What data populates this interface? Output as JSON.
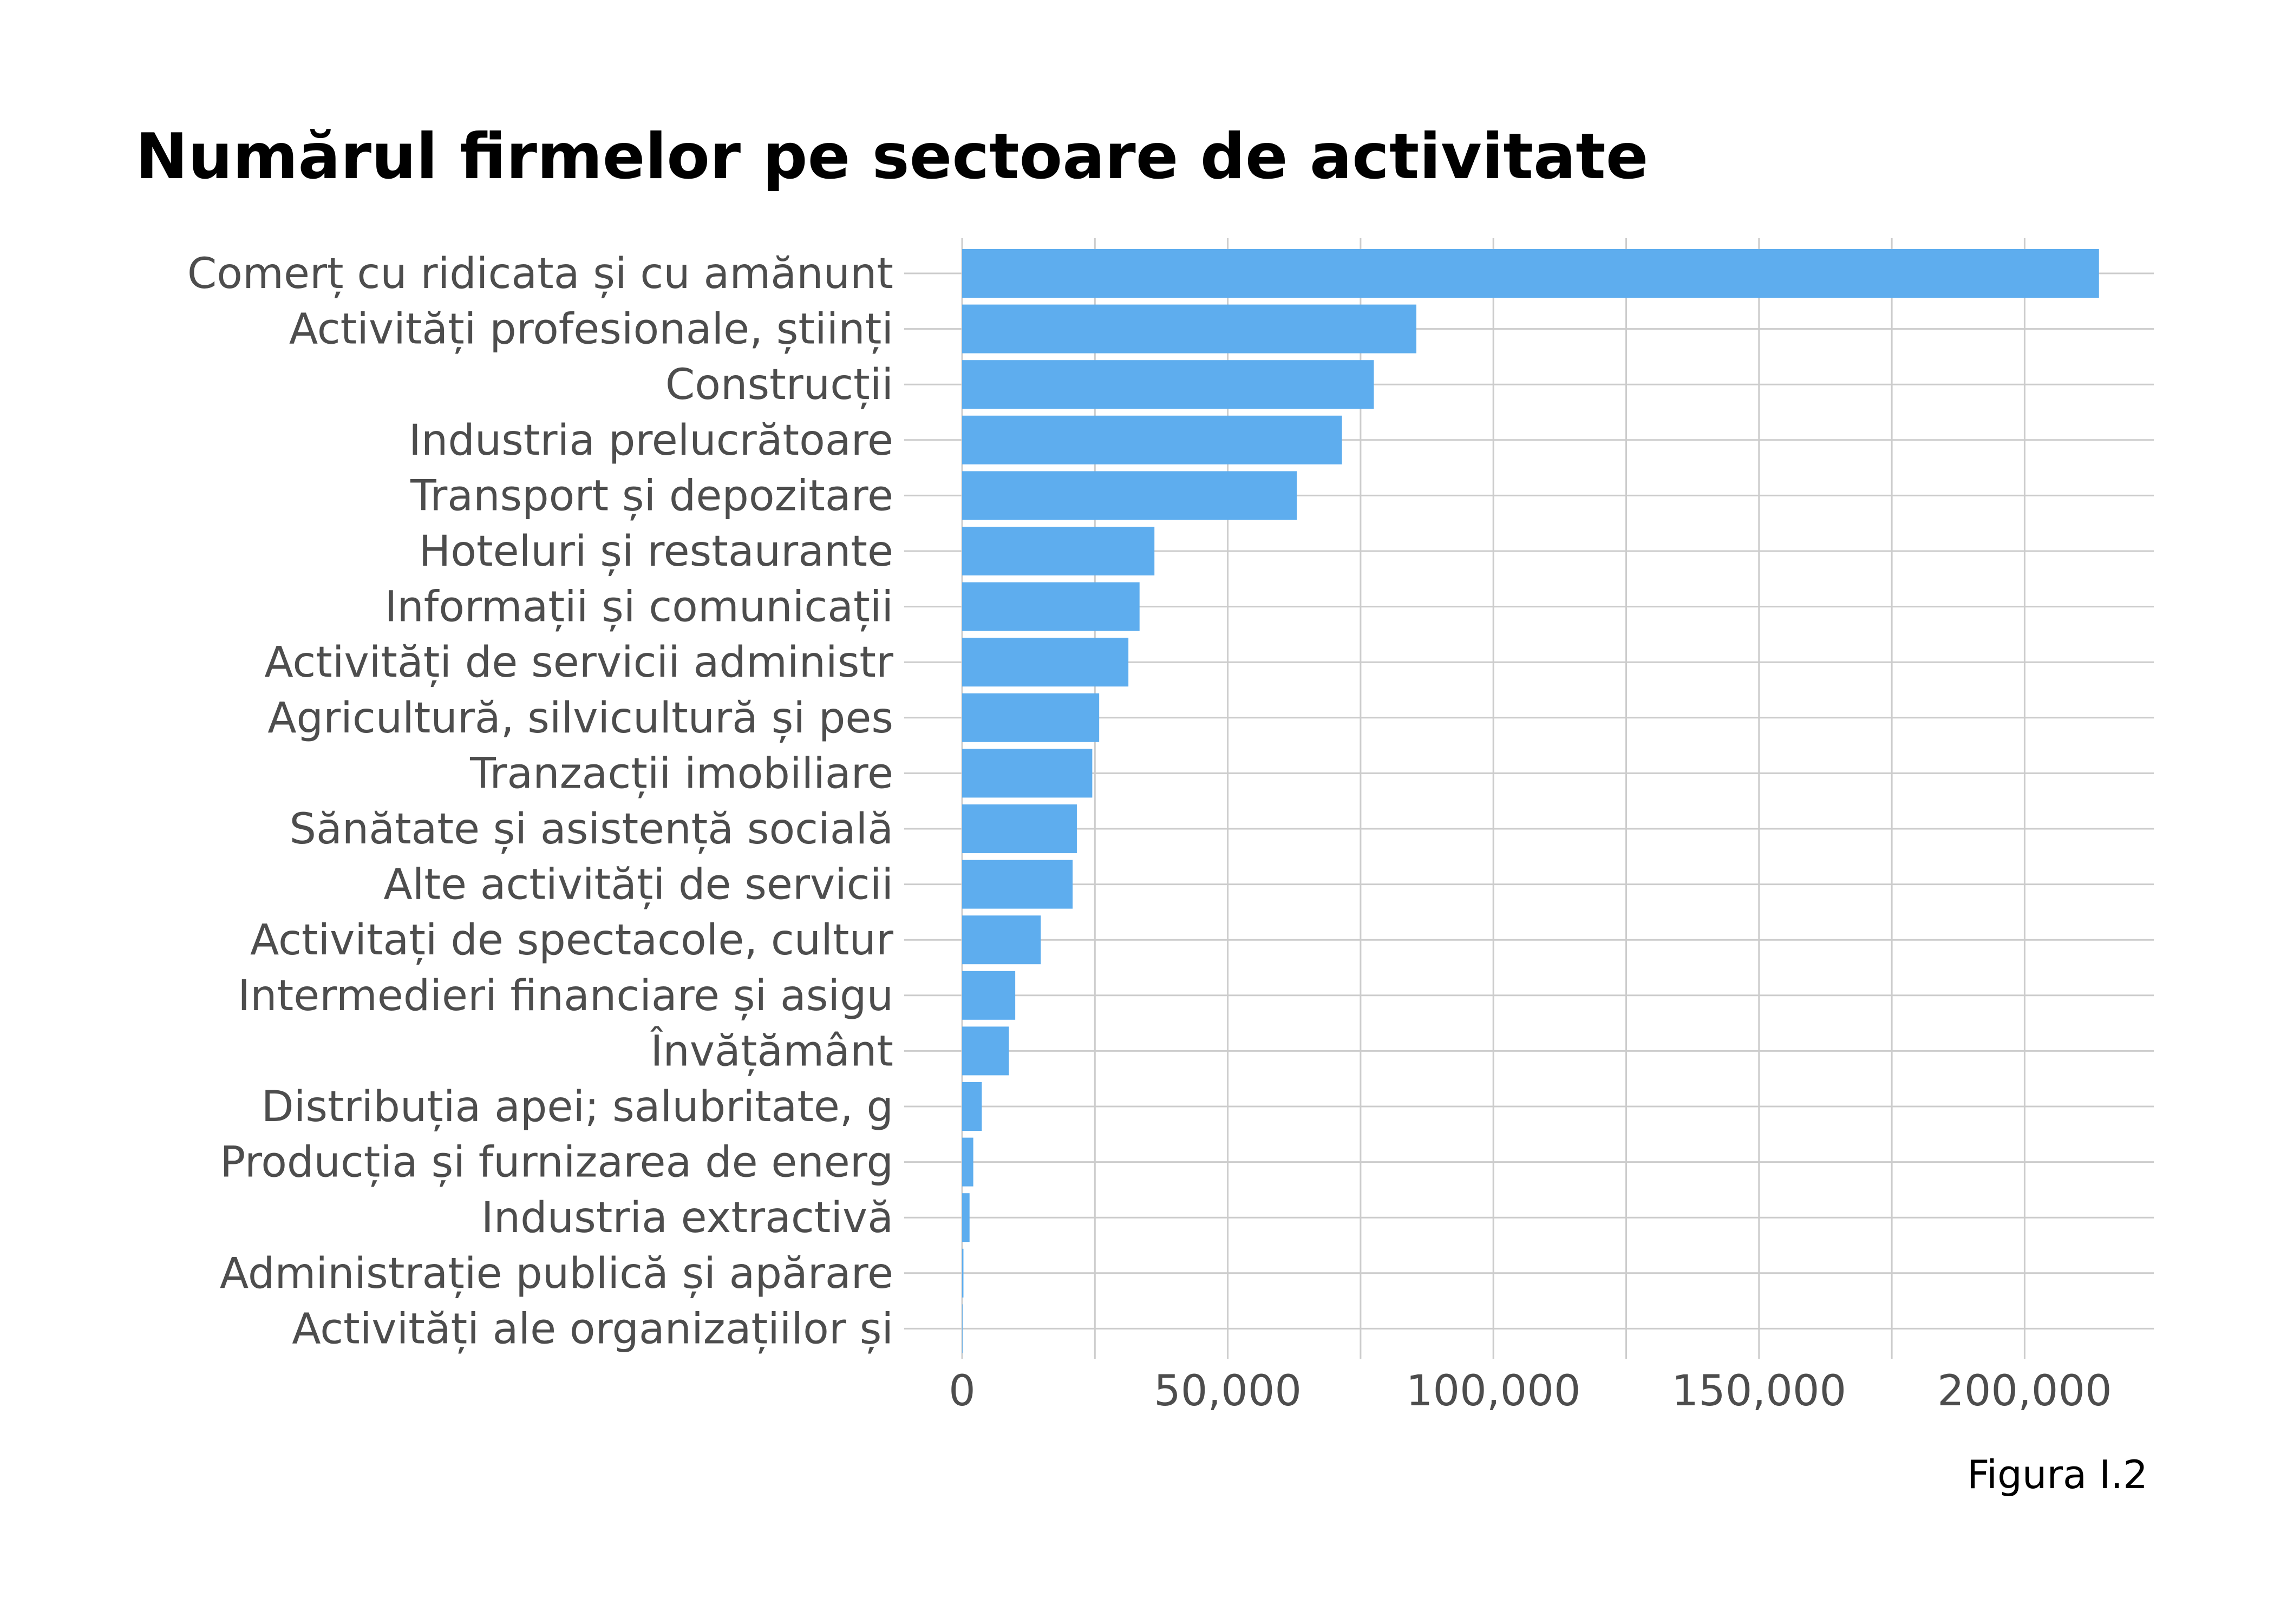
{
  "caption": "Figura I.2",
  "colors": {
    "bar": "#5eadee",
    "grid": "#cccccc",
    "tick_text": "#4d4d4d",
    "title": "#000000"
  },
  "chart_data": {
    "type": "bar",
    "orientation": "horizontal",
    "title": "Numărul firmelor pe sectoare de activitate",
    "xlabel": "",
    "ylabel": "",
    "xlim": [
      0,
      225000
    ],
    "x_ticks": [
      0,
      50000,
      100000,
      150000,
      200000
    ],
    "x_tick_labels": [
      "0",
      "50,000",
      "100,000",
      "150,000",
      "200,000"
    ],
    "grid": true,
    "legend": "none",
    "categories": [
      "Comerț cu ridicata și cu amănunt",
      "Activități profesionale, științi",
      "Construcții",
      "Industria prelucrătoare",
      "Transport și depozitare",
      "Hoteluri și restaurante",
      "Informații și comunicații",
      "Activități de servicii administr",
      "Agricultură, silvicultură și pes",
      "Tranzacții imobiliare",
      "Sănătate și asistență socială",
      "Alte activități de servicii",
      "Activitați de spectacole, cultur",
      "Intermedieri financiare și asigu",
      "Învățământ",
      "Distribuția apei; salubritate, g",
      "Producția și furnizarea de energ",
      "Industria extractivă",
      "Administrație publică și apărare",
      "Activități ale organizațiilor și"
    ],
    "values": [
      214000,
      85500,
      77500,
      71500,
      63000,
      36200,
      33400,
      31300,
      25800,
      24500,
      21600,
      20800,
      14800,
      10000,
      8800,
      3700,
      2100,
      1400,
      250,
      80
    ]
  }
}
